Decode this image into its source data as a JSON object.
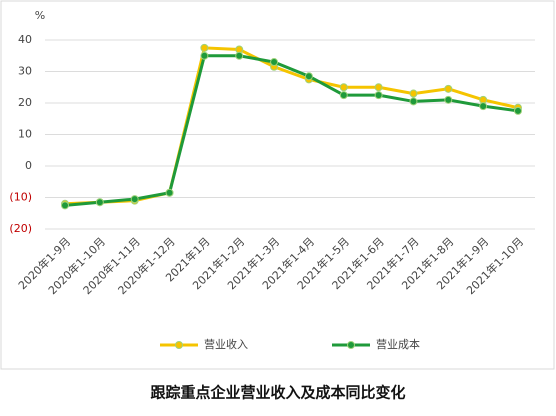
{
  "chart_data": {
    "type": "line",
    "y_unit": "%",
    "caption": "跟踪重点企业营业收入及成本同比变化",
    "categories": [
      "2020年1-9月",
      "2020年1-10月",
      "2020年1-11月",
      "2020年1-12月",
      "2021年1月",
      "2021年1-2月",
      "2021年1-3月",
      "2021年1-4月",
      "2021年1-5月",
      "2021年1-6月",
      "2021年1-7月",
      "2021年1-8月",
      "2021年1-9月",
      "2021年1-10月"
    ],
    "series": [
      {
        "name": "营业收入",
        "color": "#f5c400",
        "values": [
          -12,
          -11.5,
          -11,
          -8.5,
          37.5,
          37,
          31.5,
          27.5,
          25,
          25,
          23,
          24.5,
          21,
          18.5
        ]
      },
      {
        "name": "营业成本",
        "color": "#1f9a3a",
        "values": [
          -12.5,
          -11.5,
          -10.5,
          -8.5,
          35,
          35,
          33,
          28.5,
          22.5,
          22.5,
          20.5,
          21,
          19,
          17.5
        ]
      }
    ],
    "ylim": [
      -20,
      40
    ],
    "yticks": [
      {
        "value": -20,
        "label": "(20)"
      },
      {
        "value": -10,
        "label": "(10)"
      },
      0,
      10,
      20,
      30,
      40
    ],
    "negative_tick_color": "#c00000",
    "grid": true
  }
}
